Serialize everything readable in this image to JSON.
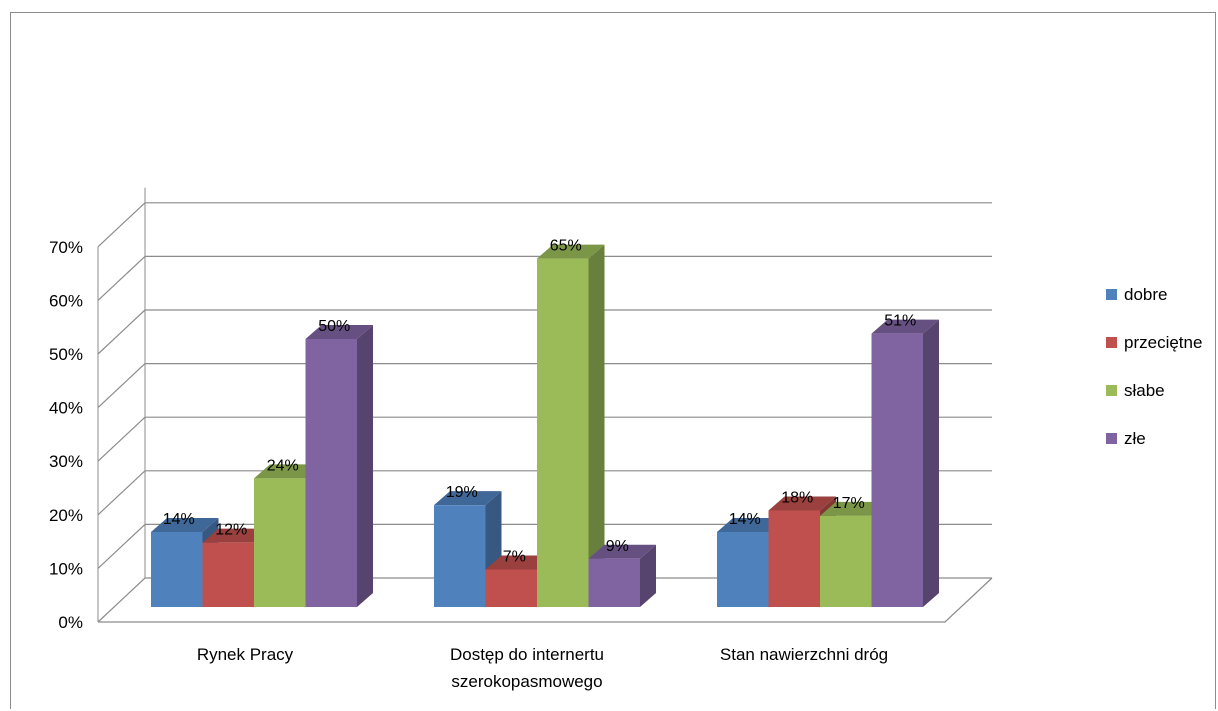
{
  "chart_data": {
    "type": "bar",
    "categories": [
      "Rynek Pracy",
      "Dostęp do internertu szerokopasmowego",
      "Stan nawierzchni dróg"
    ],
    "category_label_lines": [
      [
        "Rynek Pracy"
      ],
      [
        "Dostęp do internertu",
        "szerokopasmowego"
      ],
      [
        "Stan nawierzchni dróg"
      ]
    ],
    "series": [
      {
        "name": "dobre",
        "values": [
          14,
          19,
          14
        ],
        "color": "#4f81bd"
      },
      {
        "name": "przeciętne",
        "values": [
          12,
          7,
          18
        ],
        "color": "#c0504d"
      },
      {
        "name": "słabe",
        "values": [
          24,
          65,
          17
        ],
        "color": "#9bbb59"
      },
      {
        "name": "złe",
        "values": [
          50,
          9,
          51
        ],
        "color": "#8064a2"
      }
    ],
    "y_ticks": [
      "0%",
      "10%",
      "20%",
      "30%",
      "40%",
      "50%",
      "60%",
      "70%"
    ],
    "data_labels": [
      [
        "14%",
        "19%",
        "14%"
      ],
      [
        "12%",
        "7%",
        "18%"
      ],
      [
        "24%",
        "65%",
        "17%"
      ],
      [
        "50%",
        "9%",
        "51%"
      ]
    ],
    "ylim": [
      0,
      70
    ],
    "y_unit": "%",
    "grid": true,
    "legend_position": "right",
    "style": "3d-clustered-column"
  }
}
